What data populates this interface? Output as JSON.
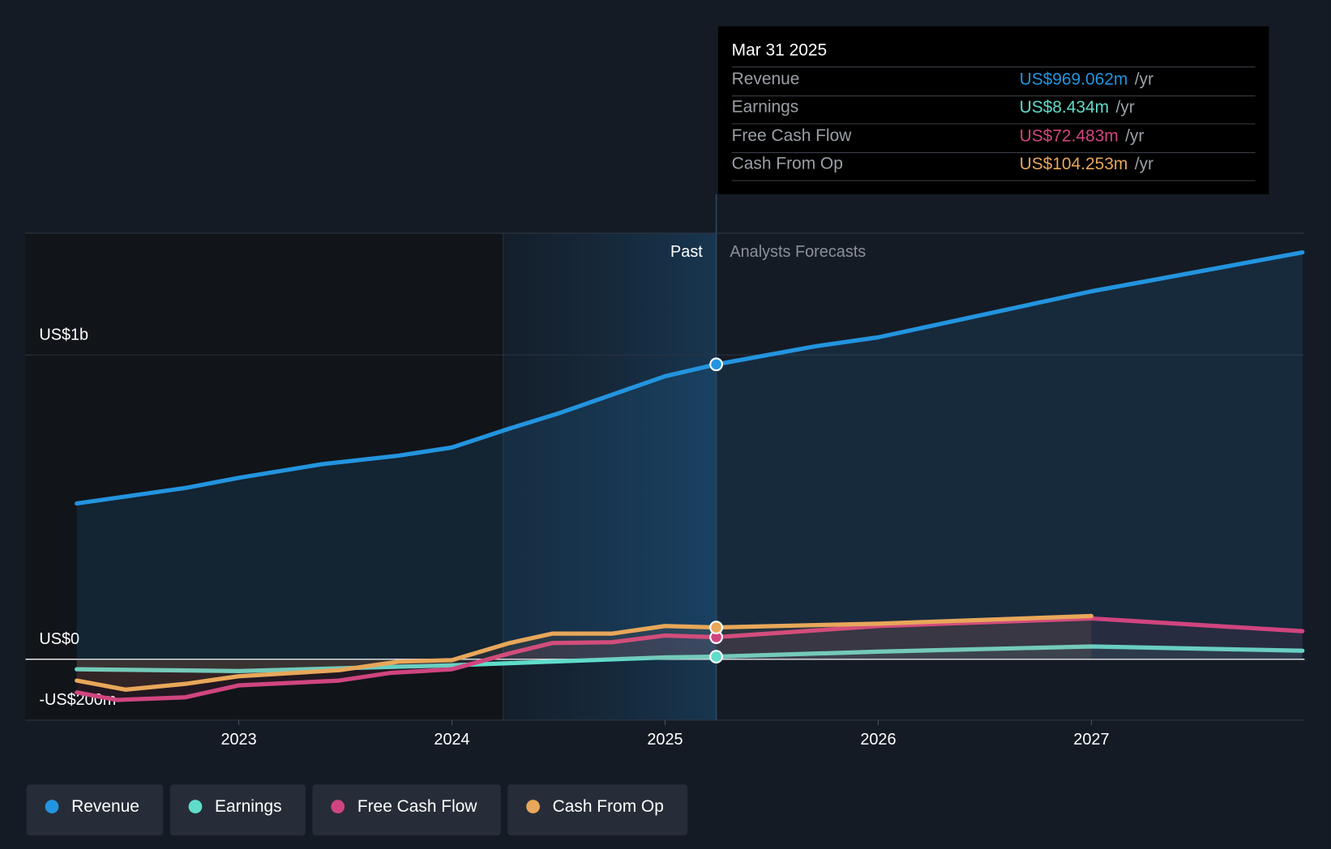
{
  "chart_data": {
    "type": "line",
    "xlim": [
      2022,
      2028
    ],
    "xticks": [
      2023,
      2024,
      2025,
      2026,
      2027
    ],
    "ylim": [
      -200,
      1400
    ],
    "yticks": [
      {
        "value": -200,
        "label": "-US$200m"
      },
      {
        "value": 0,
        "label": "US$0"
      },
      {
        "value": 1000,
        "label": "US$1b"
      }
    ],
    "annotations": {
      "past": "Past",
      "forecast": "Analysts Forecasts"
    },
    "series": [
      {
        "name": "Revenue",
        "color": "#2394df",
        "x": [
          2022.24,
          2022.75,
          2023.0,
          2023.39,
          2023.75,
          2024.0,
          2024.27,
          2024.5,
          2024.75,
          2025.0,
          2025.24,
          2025.7,
          2026.0,
          2027.0,
          2027.99
        ],
        "values": [
          512,
          563,
          596,
          641,
          669,
          696,
          758,
          808,
          869,
          930,
          969.062,
          1028,
          1058,
          1209,
          1337
        ]
      },
      {
        "name": "Earnings",
        "color": "#5fdccb",
        "x": [
          2022.24,
          2023.0,
          2024.0,
          2025.0,
          2025.24,
          2026.0,
          2027.0,
          2027.99
        ],
        "values": [
          -33,
          -39,
          -20,
          6,
          8.434,
          25,
          42,
          28
        ]
      },
      {
        "name": "Free Cash Flow",
        "color": "#d0457f",
        "x": [
          2022.24,
          2022.43,
          2022.75,
          2023.0,
          2023.47,
          2023.71,
          2024.0,
          2024.27,
          2024.47,
          2024.75,
          2025.0,
          2025.24,
          2026.0,
          2027.0,
          2027.99
        ],
        "values": [
          -109,
          -134,
          -125,
          -86,
          -70,
          -45,
          -33,
          19,
          53,
          56,
          78,
          72.483,
          109,
          134,
          92
        ]
      },
      {
        "name": "Cash From Op",
        "color": "#e8a75a",
        "x": [
          2022.24,
          2022.47,
          2022.75,
          2023.0,
          2023.47,
          2023.75,
          2024.0,
          2024.27,
          2024.47,
          2024.75,
          2025.0,
          2025.24,
          2026.0,
          2027.0
        ],
        "values": [
          -70,
          -100,
          -81,
          -56,
          -36,
          -8,
          -3,
          53,
          84,
          84,
          109,
          104.253,
          117,
          142
        ]
      }
    ],
    "tooltip": {
      "date": "Mar 31 2025",
      "values": [
        969.062,
        8.434,
        72.483,
        104.253
      ],
      "value_labels": [
        "US$969.062m",
        "US$8.434m",
        "US$72.483m",
        "US$104.253m"
      ],
      "unit": "/yr"
    }
  }
}
